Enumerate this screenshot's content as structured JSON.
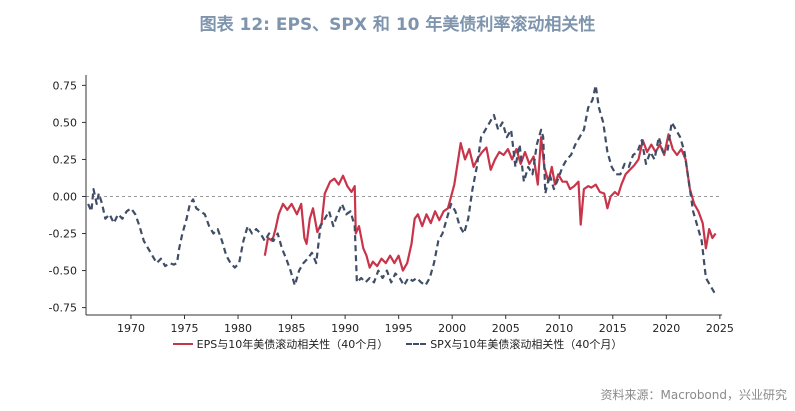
{
  "title": "图表 12: EPS、SPX 和 10 年美债利率滚动相关性",
  "source": "资料来源：Macrobond，兴业研究",
  "chart_data": {
    "type": "line",
    "title": "图表 12: EPS、SPX 和 10 年美债利率滚动相关性",
    "xlabel": "",
    "ylabel": "",
    "xlim": [
      1965.8,
      2025.2
    ],
    "ylim": [
      -0.8,
      0.82
    ],
    "xticks": [
      1970,
      1975,
      1980,
      1985,
      1990,
      1995,
      2000,
      2005,
      2010,
      2015,
      2020,
      2025
    ],
    "yticks": [
      -0.75,
      -0.5,
      -0.25,
      0.0,
      0.25,
      0.5,
      0.75
    ],
    "ytick_labels": [
      "-0.75",
      "-0.50",
      "-0.25",
      "0.00",
      "0.25",
      "0.50",
      "0.75"
    ],
    "zero_line": true,
    "legend_position": "bottom",
    "series": [
      {
        "name": "EPS与10年美债滚动相关性（40个月）",
        "color": "#c8354a",
        "style": "solid",
        "points": [
          [
            1982.5,
            -0.4
          ],
          [
            1982.8,
            -0.28
          ],
          [
            1983.2,
            -0.3
          ],
          [
            1983.5,
            -0.22
          ],
          [
            1983.8,
            -0.12
          ],
          [
            1984.2,
            -0.05
          ],
          [
            1984.6,
            -0.09
          ],
          [
            1985.0,
            -0.05
          ],
          [
            1985.5,
            -0.12
          ],
          [
            1985.9,
            -0.05
          ],
          [
            1986.2,
            -0.28
          ],
          [
            1986.4,
            -0.32
          ],
          [
            1986.7,
            -0.15
          ],
          [
            1987.0,
            -0.08
          ],
          [
            1987.4,
            -0.24
          ],
          [
            1987.8,
            -0.18
          ],
          [
            1988.1,
            0.02
          ],
          [
            1988.6,
            0.1
          ],
          [
            1989.0,
            0.12
          ],
          [
            1989.4,
            0.08
          ],
          [
            1989.8,
            0.14
          ],
          [
            1990.2,
            0.07
          ],
          [
            1990.6,
            0.03
          ],
          [
            1990.9,
            0.07
          ],
          [
            1991.0,
            -0.25
          ],
          [
            1991.3,
            -0.2
          ],
          [
            1991.7,
            -0.35
          ],
          [
            1992.0,
            -0.4
          ],
          [
            1992.3,
            -0.48
          ],
          [
            1992.6,
            -0.44
          ],
          [
            1993.0,
            -0.47
          ],
          [
            1993.4,
            -0.42
          ],
          [
            1993.8,
            -0.45
          ],
          [
            1994.2,
            -0.4
          ],
          [
            1994.6,
            -0.45
          ],
          [
            1995.0,
            -0.4
          ],
          [
            1995.4,
            -0.5
          ],
          [
            1995.8,
            -0.45
          ],
          [
            1996.2,
            -0.32
          ],
          [
            1996.5,
            -0.15
          ],
          [
            1996.8,
            -0.12
          ],
          [
            1997.2,
            -0.2
          ],
          [
            1997.6,
            -0.12
          ],
          [
            1998.0,
            -0.18
          ],
          [
            1998.4,
            -0.1
          ],
          [
            1998.8,
            -0.16
          ],
          [
            1999.2,
            -0.1
          ],
          [
            1999.6,
            -0.08
          ],
          [
            1999.9,
            0.0
          ],
          [
            2000.2,
            0.08
          ],
          [
            2000.5,
            0.22
          ],
          [
            2000.8,
            0.36
          ],
          [
            2001.2,
            0.25
          ],
          [
            2001.6,
            0.32
          ],
          [
            2002.0,
            0.2
          ],
          [
            2002.4,
            0.26
          ],
          [
            2002.8,
            0.3
          ],
          [
            2003.2,
            0.33
          ],
          [
            2003.6,
            0.18
          ],
          [
            2004.0,
            0.25
          ],
          [
            2004.4,
            0.3
          ],
          [
            2004.8,
            0.28
          ],
          [
            2005.2,
            0.32
          ],
          [
            2005.6,
            0.25
          ],
          [
            2006.0,
            0.32
          ],
          [
            2006.4,
            0.22
          ],
          [
            2006.8,
            0.3
          ],
          [
            2007.2,
            0.22
          ],
          [
            2007.6,
            0.27
          ],
          [
            2008.0,
            0.08
          ],
          [
            2008.3,
            0.4
          ],
          [
            2008.6,
            0.2
          ],
          [
            2009.0,
            0.1
          ],
          [
            2009.3,
            0.2
          ],
          [
            2009.6,
            0.08
          ],
          [
            2009.9,
            0.15
          ],
          [
            2010.3,
            0.1
          ],
          [
            2010.7,
            0.1
          ],
          [
            2011.0,
            0.05
          ],
          [
            2011.4,
            0.07
          ],
          [
            2011.8,
            0.1
          ],
          [
            2012.0,
            -0.19
          ],
          [
            2012.3,
            0.05
          ],
          [
            2012.7,
            0.07
          ],
          [
            2013.0,
            0.06
          ],
          [
            2013.4,
            0.08
          ],
          [
            2013.8,
            0.03
          ],
          [
            2014.2,
            0.02
          ],
          [
            2014.5,
            -0.08
          ],
          [
            2014.8,
            0.0
          ],
          [
            2015.2,
            0.03
          ],
          [
            2015.5,
            0.01
          ],
          [
            2015.8,
            0.08
          ],
          [
            2016.2,
            0.15
          ],
          [
            2016.6,
            0.18
          ],
          [
            2017.0,
            0.21
          ],
          [
            2017.4,
            0.25
          ],
          [
            2017.8,
            0.38
          ],
          [
            2018.2,
            0.3
          ],
          [
            2018.6,
            0.35
          ],
          [
            2019.0,
            0.3
          ],
          [
            2019.4,
            0.35
          ],
          [
            2019.8,
            0.28
          ],
          [
            2020.2,
            0.42
          ],
          [
            2020.6,
            0.32
          ],
          [
            2021.0,
            0.28
          ],
          [
            2021.4,
            0.32
          ],
          [
            2021.8,
            0.25
          ],
          [
            2022.2,
            0.05
          ],
          [
            2022.6,
            -0.05
          ],
          [
            2023.0,
            -0.1
          ],
          [
            2023.4,
            -0.18
          ],
          [
            2023.7,
            -0.35
          ],
          [
            2024.0,
            -0.22
          ],
          [
            2024.3,
            -0.28
          ],
          [
            2024.6,
            -0.25
          ]
        ]
      },
      {
        "name": "SPX与10年美债滚动相关性（40个月）",
        "color": "#3f4e66",
        "style": "dashed",
        "points": [
          [
            1966.0,
            -0.05
          ],
          [
            1966.3,
            -0.1
          ],
          [
            1966.5,
            0.05
          ],
          [
            1966.8,
            -0.05
          ],
          [
            1967.0,
            0.02
          ],
          [
            1967.3,
            -0.05
          ],
          [
            1967.6,
            -0.15
          ],
          [
            1968.0,
            -0.12
          ],
          [
            1968.4,
            -0.18
          ],
          [
            1968.8,
            -0.12
          ],
          [
            1969.2,
            -0.15
          ],
          [
            1969.6,
            -0.1
          ],
          [
            1970.0,
            -0.08
          ],
          [
            1970.4,
            -0.12
          ],
          [
            1970.8,
            -0.2
          ],
          [
            1971.2,
            -0.3
          ],
          [
            1971.6,
            -0.35
          ],
          [
            1972.0,
            -0.4
          ],
          [
            1972.4,
            -0.45
          ],
          [
            1972.8,
            -0.42
          ],
          [
            1973.2,
            -0.47
          ],
          [
            1973.6,
            -0.45
          ],
          [
            1974.0,
            -0.46
          ],
          [
            1974.3,
            -0.45
          ],
          [
            1974.5,
            -0.35
          ],
          [
            1974.8,
            -0.25
          ],
          [
            1975.2,
            -0.15
          ],
          [
            1975.5,
            -0.05
          ],
          [
            1975.8,
            -0.02
          ],
          [
            1976.1,
            -0.08
          ],
          [
            1976.5,
            -0.1
          ],
          [
            1976.9,
            -0.12
          ],
          [
            1977.3,
            -0.2
          ],
          [
            1977.7,
            -0.25
          ],
          [
            1978.1,
            -0.22
          ],
          [
            1978.5,
            -0.3
          ],
          [
            1978.9,
            -0.4
          ],
          [
            1979.3,
            -0.45
          ],
          [
            1979.7,
            -0.48
          ],
          [
            1980.1,
            -0.45
          ],
          [
            1980.5,
            -0.3
          ],
          [
            1980.9,
            -0.2
          ],
          [
            1981.3,
            -0.25
          ],
          [
            1981.7,
            -0.22
          ],
          [
            1982.1,
            -0.25
          ],
          [
            1982.5,
            -0.3
          ],
          [
            1982.9,
            -0.25
          ],
          [
            1983.3,
            -0.3
          ],
          [
            1983.7,
            -0.25
          ],
          [
            1984.1,
            -0.35
          ],
          [
            1984.5,
            -0.42
          ],
          [
            1984.9,
            -0.5
          ],
          [
            1985.3,
            -0.6
          ],
          [
            1985.7,
            -0.5
          ],
          [
            1986.1,
            -0.45
          ],
          [
            1986.5,
            -0.42
          ],
          [
            1986.9,
            -0.38
          ],
          [
            1987.3,
            -0.45
          ],
          [
            1987.7,
            -0.2
          ],
          [
            1988.1,
            -0.15
          ],
          [
            1988.5,
            -0.1
          ],
          [
            1988.9,
            -0.2
          ],
          [
            1989.3,
            -0.12
          ],
          [
            1989.7,
            -0.05
          ],
          [
            1990.1,
            -0.12
          ],
          [
            1990.5,
            -0.1
          ],
          [
            1990.9,
            -0.2
          ],
          [
            1991.1,
            -0.58
          ],
          [
            1991.5,
            -0.55
          ],
          [
            1991.9,
            -0.58
          ],
          [
            1992.3,
            -0.55
          ],
          [
            1992.7,
            -0.58
          ],
          [
            1993.1,
            -0.5
          ],
          [
            1993.5,
            -0.55
          ],
          [
            1993.9,
            -0.5
          ],
          [
            1994.3,
            -0.58
          ],
          [
            1994.7,
            -0.52
          ],
          [
            1995.1,
            -0.55
          ],
          [
            1995.5,
            -0.6
          ],
          [
            1995.9,
            -0.55
          ],
          [
            1996.3,
            -0.57
          ],
          [
            1996.7,
            -0.55
          ],
          [
            1997.1,
            -0.58
          ],
          [
            1997.5,
            -0.6
          ],
          [
            1997.9,
            -0.55
          ],
          [
            1998.3,
            -0.45
          ],
          [
            1998.7,
            -0.3
          ],
          [
            1999.1,
            -0.25
          ],
          [
            1999.5,
            -0.15
          ],
          [
            1999.9,
            -0.05
          ],
          [
            2000.3,
            -0.1
          ],
          [
            2000.7,
            -0.2
          ],
          [
            2001.1,
            -0.25
          ],
          [
            2001.5,
            -0.15
          ],
          [
            2001.9,
            0.05
          ],
          [
            2002.3,
            0.2
          ],
          [
            2002.7,
            0.4
          ],
          [
            2003.1,
            0.45
          ],
          [
            2003.5,
            0.5
          ],
          [
            2003.9,
            0.55
          ],
          [
            2004.3,
            0.45
          ],
          [
            2004.7,
            0.5
          ],
          [
            2005.1,
            0.4
          ],
          [
            2005.5,
            0.45
          ],
          [
            2005.9,
            0.2
          ],
          [
            2006.3,
            0.35
          ],
          [
            2006.7,
            0.1
          ],
          [
            2007.1,
            0.2
          ],
          [
            2007.5,
            0.15
          ],
          [
            2007.9,
            0.35
          ],
          [
            2008.3,
            0.45
          ],
          [
            2008.5,
            0.4
          ],
          [
            2008.7,
            0.02
          ],
          [
            2009.1,
            0.15
          ],
          [
            2009.5,
            0.05
          ],
          [
            2009.9,
            0.12
          ],
          [
            2010.3,
            0.2
          ],
          [
            2010.7,
            0.25
          ],
          [
            2011.1,
            0.28
          ],
          [
            2011.5,
            0.35
          ],
          [
            2011.9,
            0.4
          ],
          [
            2012.3,
            0.45
          ],
          [
            2012.7,
            0.6
          ],
          [
            2013.1,
            0.65
          ],
          [
            2013.4,
            0.75
          ],
          [
            2013.7,
            0.6
          ],
          [
            2014.1,
            0.5
          ],
          [
            2014.5,
            0.3
          ],
          [
            2014.9,
            0.2
          ],
          [
            2015.3,
            0.15
          ],
          [
            2015.7,
            0.15
          ],
          [
            2016.1,
            0.22
          ],
          [
            2016.5,
            0.2
          ],
          [
            2016.9,
            0.28
          ],
          [
            2017.3,
            0.3
          ],
          [
            2017.7,
            0.38
          ],
          [
            2018.1,
            0.22
          ],
          [
            2018.5,
            0.3
          ],
          [
            2018.9,
            0.25
          ],
          [
            2019.3,
            0.4
          ],
          [
            2019.7,
            0.3
          ],
          [
            2020.1,
            0.3
          ],
          [
            2020.5,
            0.5
          ],
          [
            2020.9,
            0.45
          ],
          [
            2021.3,
            0.4
          ],
          [
            2021.7,
            0.3
          ],
          [
            2022.1,
            0.1
          ],
          [
            2022.5,
            -0.1
          ],
          [
            2022.9,
            -0.2
          ],
          [
            2023.3,
            -0.3
          ],
          [
            2023.7,
            -0.55
          ],
          [
            2024.1,
            -0.6
          ],
          [
            2024.5,
            -0.65
          ]
        ]
      }
    ]
  }
}
